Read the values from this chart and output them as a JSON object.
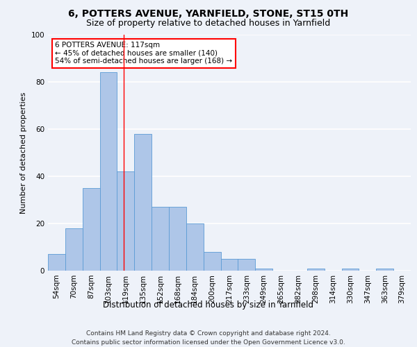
{
  "title": "6, POTTERS AVENUE, YARNFIELD, STONE, ST15 0TH",
  "subtitle": "Size of property relative to detached houses in Yarnfield",
  "xlabel_bottom": "Distribution of detached houses by size in Yarnfield",
  "ylabel": "Number of detached properties",
  "bar_labels": [
    "54sqm",
    "70sqm",
    "87sqm",
    "103sqm",
    "119sqm",
    "135sqm",
    "152sqm",
    "168sqm",
    "184sqm",
    "200sqm",
    "217sqm",
    "233sqm",
    "249sqm",
    "265sqm",
    "282sqm",
    "298sqm",
    "314sqm",
    "330sqm",
    "347sqm",
    "363sqm",
    "379sqm"
  ],
  "bar_values": [
    7,
    18,
    35,
    84,
    42,
    58,
    27,
    27,
    20,
    8,
    5,
    5,
    1,
    0,
    0,
    1,
    0,
    1,
    0,
    1,
    0
  ],
  "bar_color": "#aec6e8",
  "bar_edge_color": "#5b9bd5",
  "vline_x": 3.875,
  "vline_color": "red",
  "annotation_text": "6 POTTERS AVENUE: 117sqm\n← 45% of detached houses are smaller (140)\n54% of semi-detached houses are larger (168) →",
  "annotation_box_color": "white",
  "annotation_box_edge_color": "red",
  "ylim": [
    0,
    100
  ],
  "yticks": [
    0,
    20,
    40,
    60,
    80,
    100
  ],
  "background_color": "#eef2f9",
  "grid_color": "white",
  "footer_line1": "Contains HM Land Registry data © Crown copyright and database right 2024.",
  "footer_line2": "Contains public sector information licensed under the Open Government Licence v3.0.",
  "title_fontsize": 10,
  "subtitle_fontsize": 9,
  "axis_label_fontsize": 8.5,
  "tick_fontsize": 7.5,
  "annotation_fontsize": 7.5,
  "footer_fontsize": 6.5,
  "ylabel_fontsize": 8
}
